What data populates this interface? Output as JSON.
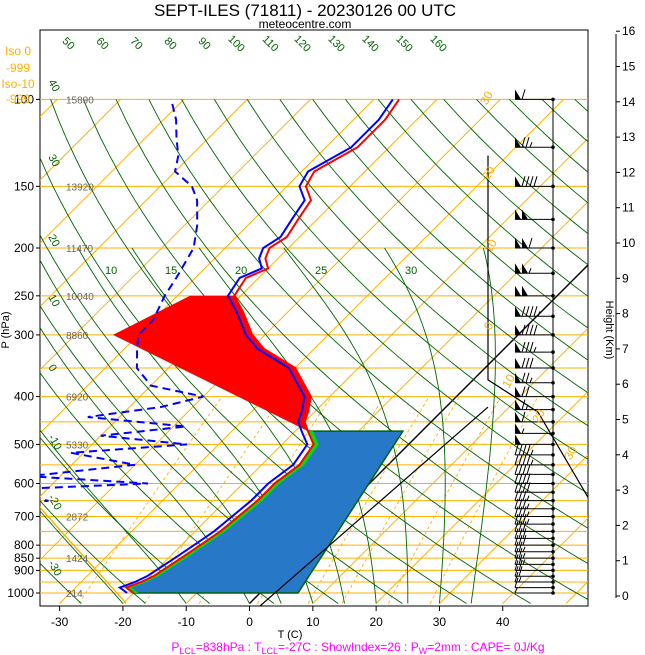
{
  "chart_data": {
    "type": "skew-t",
    "title": "SEPT-ILES (71811) - 20230126 00 UTC",
    "subtitle": "meteocentre.com",
    "xlabel": "T (C)",
    "ylabel": "P (hPa)",
    "y2label": "Height (Km)",
    "xlim": [
      -33,
      45
    ],
    "ylim_pressure": [
      1050,
      100
    ],
    "x_ticks": [
      "-30",
      "-20",
      "-10",
      "0",
      "10",
      "20",
      "30",
      "40"
    ],
    "pressure_ticks": [
      "100",
      "150",
      "200",
      "250",
      "300",
      "400",
      "500",
      "600",
      "700",
      "800",
      "850",
      "900",
      "1000"
    ],
    "height_ticks": [
      "0",
      "1",
      "2",
      "3",
      "4",
      "5",
      "6",
      "7",
      "8",
      "9",
      "10",
      "11",
      "12",
      "13",
      "14",
      "15",
      "16"
    ],
    "geopotential_labels": [
      {
        "p": 1000,
        "text": "214"
      },
      {
        "p": 850,
        "text": "1424"
      },
      {
        "p": 700,
        "text": "2872"
      },
      {
        "p": 500,
        "text": "5330"
      },
      {
        "p": 400,
        "text": "6920"
      },
      {
        "p": 300,
        "text": "8860"
      },
      {
        "p": 250,
        "text": "10040"
      },
      {
        "p": 200,
        "text": "11470"
      },
      {
        "p": 150,
        "text": "13920"
      },
      {
        "p": 100,
        "text": "15890"
      }
    ],
    "side_labels": [
      "Iso 0",
      "-999",
      "Iso-10",
      "-999"
    ],
    "mixing_ratio_labels": [
      "10",
      "15",
      "20",
      "25",
      "30"
    ],
    "adiabat_labels": [
      "50",
      "60",
      "70",
      "80",
      "90",
      "100",
      "110",
      "120",
      "130",
      "140",
      "150",
      "160"
    ],
    "left_adiabat_labels": [
      "40",
      "30",
      "20",
      "10",
      "0",
      "-10",
      "-20",
      "-30"
    ],
    "wetbulb_labels": [
      "30",
      "20",
      "10",
      "0",
      "10",
      "20",
      "30"
    ],
    "temperature_profile": {
      "p": [
        1000,
        975,
        950,
        925,
        900,
        850,
        800,
        750,
        700,
        650,
        600,
        550,
        500,
        470,
        450,
        430,
        400,
        350,
        320,
        300,
        270,
        250,
        230,
        220,
        210,
        200,
        190,
        175,
        160,
        150,
        140,
        125,
        110,
        100
      ],
      "t": [
        -20,
        -22,
        -20.5,
        -19.5,
        -19,
        -18,
        -17,
        -16,
        -15.5,
        -15,
        -15,
        -14,
        -15,
        -18,
        -20,
        -21,
        -23,
        -30,
        -38,
        -42,
        -47,
        -51,
        -52,
        -50,
        -52,
        -53,
        -52,
        -53,
        -54,
        -57,
        -58,
        -55,
        -55,
        -56
      ]
    },
    "dewpoint_profile": {
      "p": [
        1000,
        975,
        950,
        925,
        900,
        850,
        800,
        750,
        700,
        650,
        600,
        550,
        500,
        470,
        450,
        430,
        400,
        350,
        320,
        300,
        270,
        250,
        230,
        220,
        210,
        200,
        190,
        175,
        160,
        150,
        140,
        125,
        110,
        100
      ],
      "t": [
        -21,
        -23,
        -21.5,
        -20.5,
        -20,
        -19,
        -18,
        -17,
        -16.5,
        -16,
        -16,
        -15,
        -16,
        -19,
        -21,
        -22,
        -24,
        -31,
        -39,
        -43,
        -48,
        -52,
        -53,
        -51,
        -53,
        -54,
        -53,
        -54,
        -55,
        -58,
        -59,
        -56,
        -56,
        -57
      ]
    },
    "dewpoint_dashed_profile": {
      "p": [
        1000,
        975,
        950,
        925,
        900,
        880,
        850,
        820,
        800,
        780,
        750,
        720,
        700,
        680,
        650,
        620,
        600,
        580,
        550,
        520,
        500,
        480,
        460,
        440,
        420,
        400,
        380,
        350,
        320,
        300,
        280,
        250,
        230,
        200,
        180,
        160,
        150,
        140,
        130,
        120,
        110,
        100
      ],
      "t": [
        -35,
        -50,
        -40,
        -52,
        -40,
        -55,
        -45,
        -52,
        -50,
        -60,
        -48,
        -58,
        -52,
        -62,
        -48,
        -60,
        -35,
        -55,
        -40,
        -52,
        -35,
        -50,
        -38,
        -55,
        -45,
        -40,
        -50,
        -55,
        -58,
        -60,
        -60,
        -62,
        -63,
        -65,
        -68,
        -72,
        -75,
        -80,
        -82,
        -85,
        -88,
        -92
      ]
    },
    "shaded_regions": [
      {
        "name": "CIN",
        "color": "#ff0000"
      },
      {
        "name": "CAPE",
        "color": "#2878c8"
      }
    ],
    "footer": "P_LCL=838hPa : T_LCL=-27C : ShowIndex=26 : P_W=2mm : CAPE= 0J/Kg",
    "footer_parts": [
      {
        "text": "P",
        "sub": "LCL",
        "rest": "=838hPa : "
      },
      {
        "text": "T",
        "sub": "LCL",
        "rest": "=-27C : ShowIndex=26 : "
      },
      {
        "text": "P",
        "sub": "W",
        "rest": "=2mm : CAPE= 0J/Kg"
      }
    ],
    "colors": {
      "isotherm": "#ffb000",
      "isobar": "#ffb000",
      "dry_adiabat": "#006400",
      "moist_adiabat": "#006400",
      "mixing_ratio": "#ffb000",
      "temperature": "#ff0000",
      "dewpoint": "#0000ff",
      "wind": "#000000"
    },
    "wind_barbs": {
      "p": [
        1000,
        975,
        950,
        925,
        900,
        875,
        850,
        825,
        800,
        775,
        750,
        725,
        700,
        675,
        650,
        625,
        600,
        575,
        550,
        525,
        500,
        475,
        450,
        425,
        400,
        375,
        350,
        325,
        300,
        275,
        250,
        225,
        200,
        175,
        150,
        125,
        100
      ],
      "speed_kt": [
        5,
        10,
        15,
        20,
        20,
        25,
        25,
        25,
        30,
        30,
        30,
        35,
        35,
        35,
        35,
        40,
        40,
        40,
        45,
        45,
        50,
        55,
        60,
        65,
        70,
        75,
        80,
        85,
        90,
        95,
        100,
        105,
        110,
        100,
        90,
        75,
        60
      ]
    }
  }
}
